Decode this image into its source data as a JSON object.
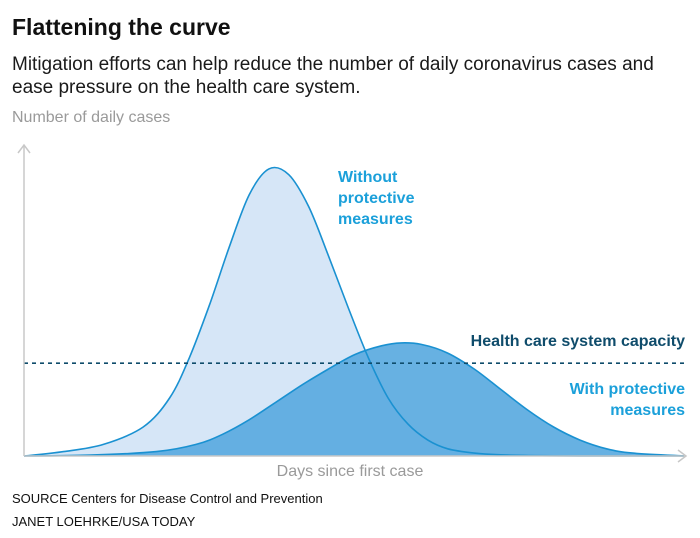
{
  "title": "Flattening the curve",
  "subtitle": "Mitigation efforts can help reduce the number of daily coronavirus cases and ease pressure on the health care system.",
  "source": "SOURCE Centers for Disease Control and Prevention",
  "credit": "JANET LOEHRKE/USA TODAY",
  "colors": {
    "without_fill": "#d6e6f7",
    "without_line": "#1a91d1",
    "with_fill": "#5aaae0",
    "with_line": "#1a91d1",
    "capacity_line": "#0f4c6b",
    "axis": "#c8c8c8"
  },
  "chart_data": {
    "type": "area",
    "title": "Flattening the curve",
    "xlabel": "Days since first case",
    "ylabel": "Number of daily cases",
    "xlim": [
      0,
      100
    ],
    "ylim": [
      0,
      100
    ],
    "grid": false,
    "series": [
      {
        "name": "Without protective measures",
        "x": [
          0,
          6,
          12,
          18,
          22,
          25,
          28,
          31,
          34,
          37,
          40,
          43,
          46,
          49,
          52,
          55,
          58,
          61,
          64,
          68,
          72,
          78,
          84,
          90,
          100
        ],
        "values": [
          0,
          1.5,
          4,
          10,
          20,
          34,
          52,
          72,
          90,
          99,
          97,
          86,
          69,
          51,
          34,
          20,
          11,
          5.5,
          2.5,
          1,
          0.4,
          0.1,
          0,
          0,
          0
        ]
      },
      {
        "name": "With protective measures",
        "x": [
          0,
          10,
          20,
          26,
          30,
          34,
          38,
          42,
          46,
          50,
          54,
          57,
          60,
          64,
          68,
          72,
          76,
          80,
          84,
          88,
          92,
          100
        ],
        "values": [
          0,
          0.3,
          1.5,
          4,
          7.5,
          12.5,
          18.5,
          24.5,
          30,
          35,
          38,
          39,
          38.5,
          35.5,
          30,
          23,
          16,
          10,
          5.5,
          2.5,
          1,
          0
        ]
      }
    ],
    "reference_lines": [
      {
        "label": "Health care system capacity",
        "y": 32
      }
    ],
    "annotations": [
      {
        "text": "Without protective measures",
        "series": "Without protective measures"
      },
      {
        "text": "With protective measures",
        "series": "With protective measures"
      },
      {
        "text": "Health care system capacity",
        "series": "capacity"
      }
    ]
  }
}
